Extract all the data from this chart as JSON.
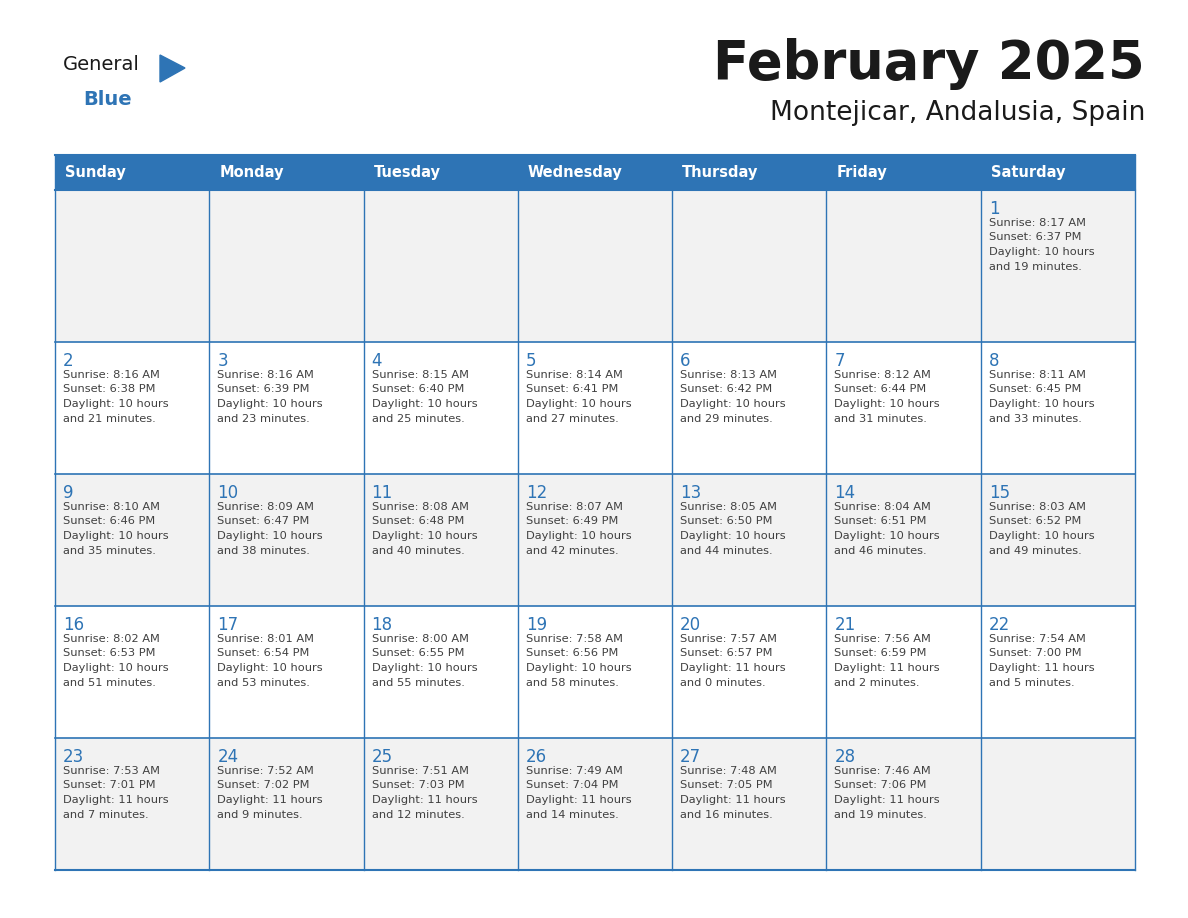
{
  "title": "February 2025",
  "subtitle": "Montejicar, Andalusia, Spain",
  "days_of_week": [
    "Sunday",
    "Monday",
    "Tuesday",
    "Wednesday",
    "Thursday",
    "Friday",
    "Saturday"
  ],
  "header_bg": "#2E74B5",
  "header_text": "#FFFFFF",
  "cell_bg_gray": "#F2F2F2",
  "cell_bg_white": "#FFFFFF",
  "day_num_color": "#2E74B5",
  "text_color": "#404040",
  "line_color": "#2E74B5",
  "logo_blue": "#2E74B5",
  "title_color": "#1A1A1A",
  "subtitle_color": "#1A1A1A",
  "calendar_data": [
    [
      null,
      null,
      null,
      null,
      null,
      null,
      {
        "day": 1,
        "sunrise": "8:17 AM",
        "sunset": "6:37 PM",
        "daylight_line1": "Daylight: 10 hours",
        "daylight_line2": "and 19 minutes."
      }
    ],
    [
      {
        "day": 2,
        "sunrise": "8:16 AM",
        "sunset": "6:38 PM",
        "daylight_line1": "Daylight: 10 hours",
        "daylight_line2": "and 21 minutes."
      },
      {
        "day": 3,
        "sunrise": "8:16 AM",
        "sunset": "6:39 PM",
        "daylight_line1": "Daylight: 10 hours",
        "daylight_line2": "and 23 minutes."
      },
      {
        "day": 4,
        "sunrise": "8:15 AM",
        "sunset": "6:40 PM",
        "daylight_line1": "Daylight: 10 hours",
        "daylight_line2": "and 25 minutes."
      },
      {
        "day": 5,
        "sunrise": "8:14 AM",
        "sunset": "6:41 PM",
        "daylight_line1": "Daylight: 10 hours",
        "daylight_line2": "and 27 minutes."
      },
      {
        "day": 6,
        "sunrise": "8:13 AM",
        "sunset": "6:42 PM",
        "daylight_line1": "Daylight: 10 hours",
        "daylight_line2": "and 29 minutes."
      },
      {
        "day": 7,
        "sunrise": "8:12 AM",
        "sunset": "6:44 PM",
        "daylight_line1": "Daylight: 10 hours",
        "daylight_line2": "and 31 minutes."
      },
      {
        "day": 8,
        "sunrise": "8:11 AM",
        "sunset": "6:45 PM",
        "daylight_line1": "Daylight: 10 hours",
        "daylight_line2": "and 33 minutes."
      }
    ],
    [
      {
        "day": 9,
        "sunrise": "8:10 AM",
        "sunset": "6:46 PM",
        "daylight_line1": "Daylight: 10 hours",
        "daylight_line2": "and 35 minutes."
      },
      {
        "day": 10,
        "sunrise": "8:09 AM",
        "sunset": "6:47 PM",
        "daylight_line1": "Daylight: 10 hours",
        "daylight_line2": "and 38 minutes."
      },
      {
        "day": 11,
        "sunrise": "8:08 AM",
        "sunset": "6:48 PM",
        "daylight_line1": "Daylight: 10 hours",
        "daylight_line2": "and 40 minutes."
      },
      {
        "day": 12,
        "sunrise": "8:07 AM",
        "sunset": "6:49 PM",
        "daylight_line1": "Daylight: 10 hours",
        "daylight_line2": "and 42 minutes."
      },
      {
        "day": 13,
        "sunrise": "8:05 AM",
        "sunset": "6:50 PM",
        "daylight_line1": "Daylight: 10 hours",
        "daylight_line2": "and 44 minutes."
      },
      {
        "day": 14,
        "sunrise": "8:04 AM",
        "sunset": "6:51 PM",
        "daylight_line1": "Daylight: 10 hours",
        "daylight_line2": "and 46 minutes."
      },
      {
        "day": 15,
        "sunrise": "8:03 AM",
        "sunset": "6:52 PM",
        "daylight_line1": "Daylight: 10 hours",
        "daylight_line2": "and 49 minutes."
      }
    ],
    [
      {
        "day": 16,
        "sunrise": "8:02 AM",
        "sunset": "6:53 PM",
        "daylight_line1": "Daylight: 10 hours",
        "daylight_line2": "and 51 minutes."
      },
      {
        "day": 17,
        "sunrise": "8:01 AM",
        "sunset": "6:54 PM",
        "daylight_line1": "Daylight: 10 hours",
        "daylight_line2": "and 53 minutes."
      },
      {
        "day": 18,
        "sunrise": "8:00 AM",
        "sunset": "6:55 PM",
        "daylight_line1": "Daylight: 10 hours",
        "daylight_line2": "and 55 minutes."
      },
      {
        "day": 19,
        "sunrise": "7:58 AM",
        "sunset": "6:56 PM",
        "daylight_line1": "Daylight: 10 hours",
        "daylight_line2": "and 58 minutes."
      },
      {
        "day": 20,
        "sunrise": "7:57 AM",
        "sunset": "6:57 PM",
        "daylight_line1": "Daylight: 11 hours",
        "daylight_line2": "and 0 minutes."
      },
      {
        "day": 21,
        "sunrise": "7:56 AM",
        "sunset": "6:59 PM",
        "daylight_line1": "Daylight: 11 hours",
        "daylight_line2": "and 2 minutes."
      },
      {
        "day": 22,
        "sunrise": "7:54 AM",
        "sunset": "7:00 PM",
        "daylight_line1": "Daylight: 11 hours",
        "daylight_line2": "and 5 minutes."
      }
    ],
    [
      {
        "day": 23,
        "sunrise": "7:53 AM",
        "sunset": "7:01 PM",
        "daylight_line1": "Daylight: 11 hours",
        "daylight_line2": "and 7 minutes."
      },
      {
        "day": 24,
        "sunrise": "7:52 AM",
        "sunset": "7:02 PM",
        "daylight_line1": "Daylight: 11 hours",
        "daylight_line2": "and 9 minutes."
      },
      {
        "day": 25,
        "sunrise": "7:51 AM",
        "sunset": "7:03 PM",
        "daylight_line1": "Daylight: 11 hours",
        "daylight_line2": "and 12 minutes."
      },
      {
        "day": 26,
        "sunrise": "7:49 AM",
        "sunset": "7:04 PM",
        "daylight_line1": "Daylight: 11 hours",
        "daylight_line2": "and 14 minutes."
      },
      {
        "day": 27,
        "sunrise": "7:48 AM",
        "sunset": "7:05 PM",
        "daylight_line1": "Daylight: 11 hours",
        "daylight_line2": "and 16 minutes."
      },
      {
        "day": 28,
        "sunrise": "7:46 AM",
        "sunset": "7:06 PM",
        "daylight_line1": "Daylight: 11 hours",
        "daylight_line2": "and 19 minutes."
      },
      null
    ]
  ]
}
